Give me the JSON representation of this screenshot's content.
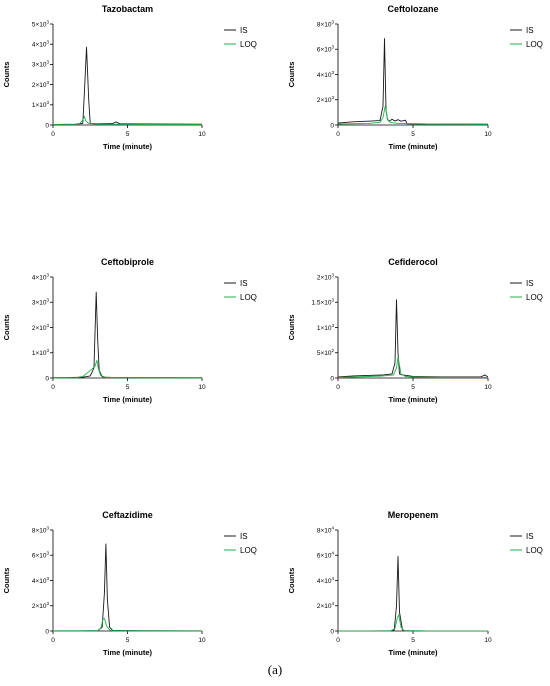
{
  "caption": "(a)",
  "colors": {
    "IS": "#1a1a1a",
    "LOQ": "#22b14c",
    "axis": "#000000"
  },
  "chart_data": [
    {
      "type": "line",
      "title": "Tazobactam",
      "xlabel": "Time (minute)",
      "ylabel": "Counts",
      "xlim": [
        0,
        10
      ],
      "ylim": [
        0,
        5000
      ],
      "xticks": [
        "0",
        "5",
        "10"
      ],
      "yticks": [
        {
          "base": "0",
          "exp": ""
        },
        {
          "base": "1×10",
          "exp": "3"
        },
        {
          "base": "2×10",
          "exp": "3"
        },
        {
          "base": "3×10",
          "exp": "3"
        },
        {
          "base": "4×10",
          "exp": "3"
        },
        {
          "base": "5×10",
          "exp": "3"
        }
      ],
      "legend": [
        "IS",
        "LOQ"
      ],
      "legend_position": "top-right",
      "series": [
        {
          "name": "IS",
          "x": [
            0,
            1.5,
            2.0,
            2.1,
            2.25,
            2.4,
            2.5,
            3.0,
            4.0,
            4.2,
            4.5,
            6.0,
            10
          ],
          "y": [
            30,
            40,
            80,
            1500,
            3850,
            1200,
            80,
            60,
            70,
            150,
            60,
            50,
            40
          ]
        },
        {
          "name": "LOQ",
          "x": [
            0,
            1.5,
            1.8,
            2.0,
            2.1,
            2.2,
            2.4,
            3.0,
            6.0,
            10
          ],
          "y": [
            20,
            30,
            80,
            250,
            430,
            200,
            80,
            40,
            30,
            20
          ]
        }
      ]
    },
    {
      "type": "line",
      "title": "Ceftolozane",
      "xlabel": "Time (minute)",
      "ylabel": "Counts",
      "xlim": [
        0,
        10
      ],
      "ylim": [
        0,
        8000
      ],
      "xticks": [
        "0",
        "5",
        "10"
      ],
      "yticks": [
        {
          "base": "0",
          "exp": ""
        },
        {
          "base": "2×10",
          "exp": "3"
        },
        {
          "base": "4×10",
          "exp": "3"
        },
        {
          "base": "6×10",
          "exp": "3"
        },
        {
          "base": "8×10",
          "exp": "3"
        }
      ],
      "legend": [
        "IS",
        "LOQ"
      ],
      "legend_position": "top-right",
      "series": [
        {
          "name": "IS",
          "x": [
            0,
            1.0,
            2.0,
            2.8,
            3.0,
            3.1,
            3.2,
            3.3,
            3.4,
            3.6,
            3.8,
            4.0,
            4.2,
            4.5,
            4.6,
            6.0,
            10
          ],
          "y": [
            150,
            250,
            300,
            350,
            1500,
            6850,
            1200,
            450,
            300,
            450,
            320,
            420,
            300,
            380,
            100,
            80,
            60
          ]
        },
        {
          "name": "LOQ",
          "x": [
            0,
            2.0,
            2.8,
            3.0,
            3.15,
            3.3,
            3.5,
            4.0,
            6.0,
            10
          ],
          "y": [
            80,
            120,
            200,
            600,
            1500,
            400,
            200,
            120,
            80,
            60
          ]
        }
      ]
    },
    {
      "type": "line",
      "title": "Ceftobiprole",
      "xlabel": "Time (minute)",
      "ylabel": "Counts",
      "xlim": [
        0,
        10
      ],
      "ylim": [
        0,
        4000
      ],
      "xticks": [
        "0",
        "5",
        "10"
      ],
      "yticks": [
        {
          "base": "0",
          "exp": ""
        },
        {
          "base": "1×10",
          "exp": "3"
        },
        {
          "base": "2×10",
          "exp": "3"
        },
        {
          "base": "3×10",
          "exp": "3"
        },
        {
          "base": "4×10",
          "exp": "3"
        }
      ],
      "legend": [
        "IS",
        "LOQ"
      ],
      "legend_position": "top-right",
      "series": [
        {
          "name": "IS",
          "x": [
            0,
            1.0,
            2.0,
            2.5,
            2.75,
            2.9,
            3.0,
            3.1,
            3.3,
            3.5,
            4.0,
            6.0,
            10
          ],
          "y": [
            10,
            15,
            30,
            80,
            400,
            3400,
            1500,
            300,
            50,
            30,
            20,
            15,
            10
          ]
        },
        {
          "name": "LOQ",
          "x": [
            0,
            1.5,
            2.0,
            2.3,
            2.6,
            2.8,
            2.95,
            3.05,
            3.2,
            3.5,
            4.0,
            6.0,
            10
          ],
          "y": [
            5,
            10,
            60,
            200,
            350,
            450,
            700,
            350,
            100,
            30,
            15,
            10,
            5
          ]
        }
      ]
    },
    {
      "type": "line",
      "title": "Cefiderocol",
      "xlabel": "Time (minute)",
      "ylabel": "Counts",
      "xlim": [
        0,
        10
      ],
      "ylim": [
        0,
        2000
      ],
      "xticks": [
        "0",
        "5",
        "10"
      ],
      "yticks": [
        {
          "base": "0",
          "exp": ""
        },
        {
          "base": "5×10",
          "exp": "2"
        },
        {
          "base": "1×10",
          "exp": "3"
        },
        {
          "base": "1.5×10",
          "exp": "3"
        },
        {
          "base": "2×10",
          "exp": "3"
        }
      ],
      "legend": [
        "IS",
        "LOQ"
      ],
      "legend_position": "top-right",
      "series": [
        {
          "name": "IS",
          "x": [
            0,
            0.5,
            1.0,
            2.0,
            3.0,
            3.6,
            3.8,
            3.9,
            4.0,
            4.1,
            4.3,
            4.6,
            5.0,
            7.0,
            9.5,
            9.8,
            10
          ],
          "y": [
            20,
            30,
            40,
            50,
            60,
            80,
            300,
            1550,
            500,
            80,
            60,
            50,
            30,
            20,
            20,
            60,
            20
          ]
        },
        {
          "name": "LOQ",
          "x": [
            0,
            1.0,
            2.0,
            3.0,
            3.7,
            3.9,
            4.0,
            4.2,
            4.5,
            5.0,
            7.0,
            10
          ],
          "y": [
            10,
            20,
            30,
            40,
            60,
            200,
            420,
            80,
            30,
            20,
            10,
            10
          ]
        }
      ]
    },
    {
      "type": "line",
      "title": "Ceftazidime",
      "xlabel": "Time (minute)",
      "ylabel": "Counts",
      "xlim": [
        0,
        10
      ],
      "ylim": [
        0,
        8000
      ],
      "xticks": [
        "0",
        "5",
        "10"
      ],
      "yticks": [
        {
          "base": "0",
          "exp": ""
        },
        {
          "base": "2×10",
          "exp": "3"
        },
        {
          "base": "4×10",
          "exp": "3"
        },
        {
          "base": "6×10",
          "exp": "3"
        },
        {
          "base": "8×10",
          "exp": "3"
        }
      ],
      "legend": [
        "IS",
        "LOQ"
      ],
      "legend_position": "top-right",
      "series": [
        {
          "name": "IS",
          "x": [
            0,
            2.0,
            3.0,
            3.3,
            3.45,
            3.55,
            3.65,
            3.8,
            4.0,
            6.0,
            10
          ],
          "y": [
            10,
            15,
            30,
            300,
            3000,
            6900,
            2500,
            300,
            50,
            20,
            10
          ]
        },
        {
          "name": "LOQ",
          "x": [
            0,
            2.0,
            3.0,
            3.2,
            3.35,
            3.45,
            3.6,
            3.8,
            4.0,
            6.0,
            10
          ],
          "y": [
            5,
            10,
            20,
            200,
            900,
            1000,
            400,
            80,
            20,
            10,
            5
          ]
        }
      ]
    },
    {
      "type": "line",
      "title": "Meropenem",
      "xlabel": "Time (minute)",
      "ylabel": "Counts",
      "xlim": [
        0,
        10
      ],
      "ylim": [
        0,
        80000
      ],
      "xticks": [
        "0",
        "5",
        "10"
      ],
      "yticks": [
        {
          "base": "0",
          "exp": ""
        },
        {
          "base": "2×10",
          "exp": "4"
        },
        {
          "base": "4×10",
          "exp": "4"
        },
        {
          "base": "6×10",
          "exp": "4"
        },
        {
          "base": "8×10",
          "exp": "4"
        }
      ],
      "legend": [
        "IS",
        "LOQ"
      ],
      "legend_position": "top-right",
      "series": [
        {
          "name": "IS",
          "x": [
            0,
            2.0,
            3.5,
            3.75,
            3.9,
            4.0,
            4.1,
            4.3,
            4.5,
            6.0,
            10
          ],
          "y": [
            50,
            80,
            150,
            800,
            20000,
            59000,
            15000,
            800,
            200,
            80,
            50
          ]
        },
        {
          "name": "LOQ",
          "x": [
            0,
            2.0,
            3.5,
            3.8,
            3.95,
            4.05,
            4.2,
            4.4,
            6.0,
            10
          ],
          "y": [
            20,
            40,
            80,
            2000,
            10000,
            12800,
            3000,
            200,
            40,
            20
          ]
        }
      ]
    }
  ]
}
